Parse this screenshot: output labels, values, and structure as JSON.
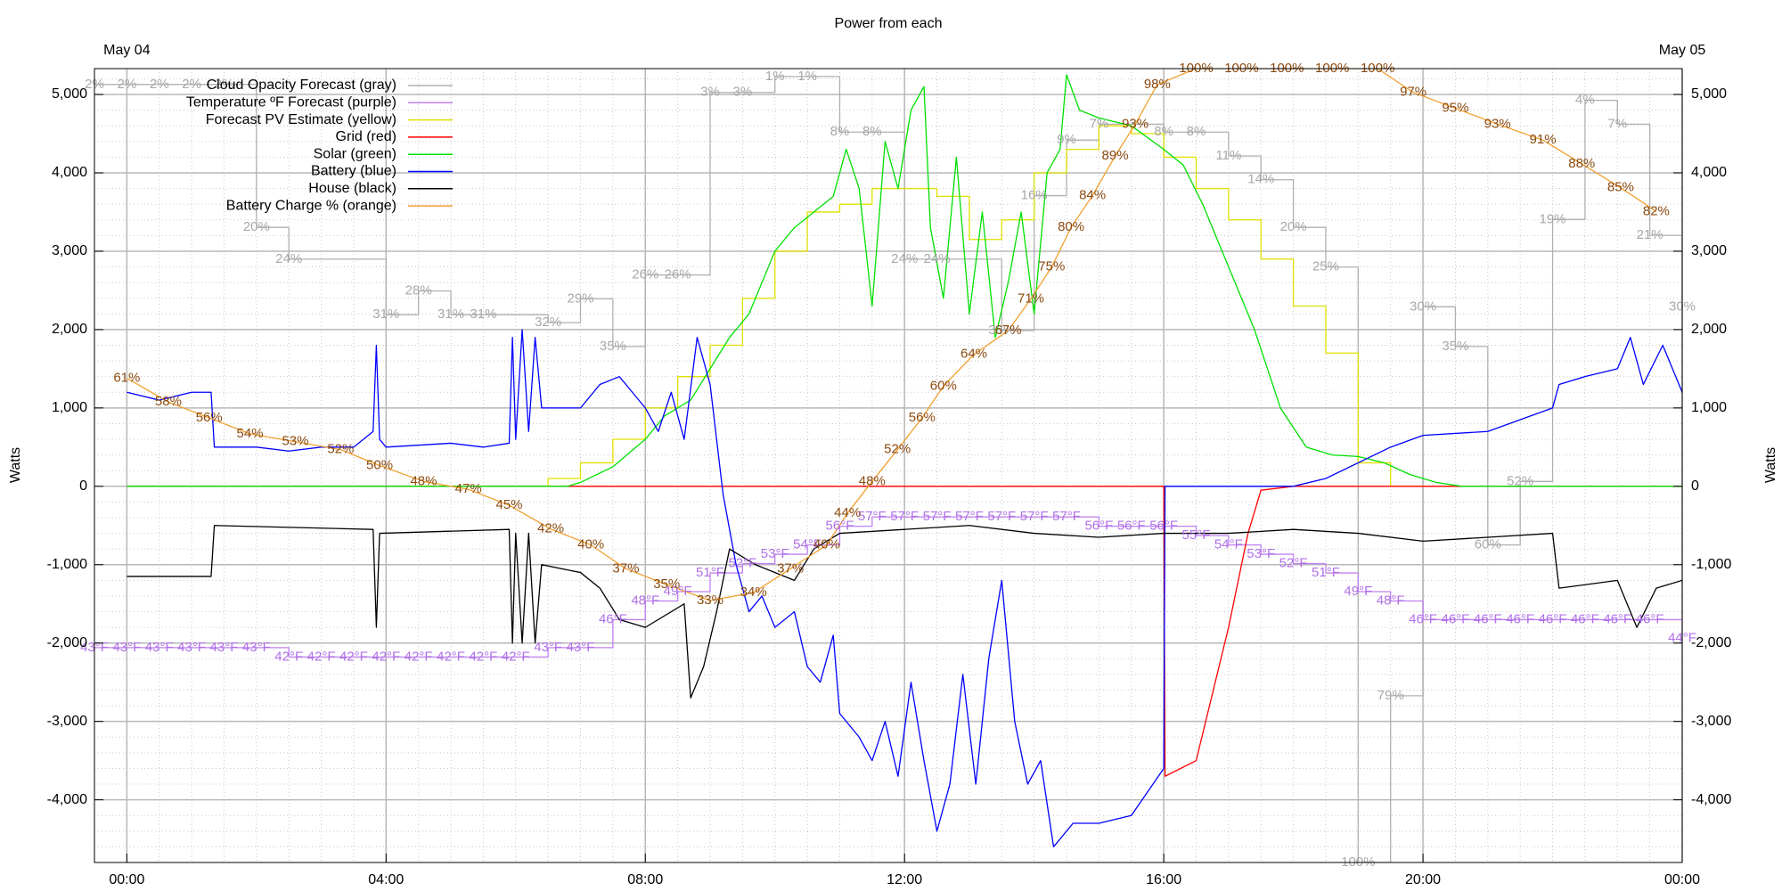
{
  "chart_data": {
    "type": "line",
    "title": "Power from each",
    "ylabel": "Watts",
    "y2label": "Watts",
    "xlim": [
      -0.5,
      24
    ],
    "xticks": [
      {
        "value": 0,
        "label": "00:00"
      },
      {
        "value": 4,
        "label": "04:00"
      },
      {
        "value": 8,
        "label": "08:00"
      },
      {
        "value": 12,
        "label": "12:00"
      },
      {
        "value": 16,
        "label": "16:00"
      },
      {
        "value": 20,
        "label": "20:00"
      },
      {
        "value": 24,
        "label": "00:00"
      }
    ],
    "x2ticks": [
      {
        "value": 0,
        "label": "May 04"
      },
      {
        "value": 24,
        "label": "May 05"
      }
    ],
    "ylim": [
      -4800,
      5330
    ],
    "yticks": [
      {
        "value": -4000,
        "label": "-4,000"
      },
      {
        "value": -3000,
        "label": "-3,000"
      },
      {
        "value": -2000,
        "label": "-2,000"
      },
      {
        "value": -1000,
        "label": "-1,000"
      },
      0,
      {
        "value": 1000,
        "label": "1,000"
      },
      {
        "value": 2000,
        "label": "2,000"
      },
      {
        "value": 3000,
        "label": "3,000"
      },
      {
        "value": 4000,
        "label": "4,000"
      },
      {
        "value": 5000,
        "label": "5,000"
      }
    ],
    "grid": true,
    "minor_grid": {
      "x": 0.5,
      "y": 200
    },
    "legend": "top-left",
    "series": [
      {
        "name": "Cloud Opacity Forecast (gray)",
        "color": "#b0b0b0",
        "label_color": "#a8a8a8",
        "step": true,
        "ylim": [
          100,
          0
        ],
        "x": [
          -0.5,
          0,
          0.5,
          1.0,
          1.5,
          2.0,
          2.5,
          4.0,
          4.5,
          5.0,
          5.5,
          6.5,
          7.0,
          7.5,
          8.0,
          8.5,
          9.0,
          9.5,
          10.0,
          10.5,
          11.0,
          11.5,
          12.0,
          12.5,
          13.5,
          14.0,
          14.5,
          15.0,
          16.0,
          16.5,
          17.0,
          17.5,
          18.0,
          18.5,
          19.0,
          19.5,
          20.0,
          20.5,
          21.0,
          21.5,
          22.0,
          22.5,
          23.0,
          23.5,
          24.0
        ],
        "values": [
          2,
          2,
          2,
          2,
          2,
          20,
          24,
          31,
          28,
          31,
          31,
          32,
          29,
          35,
          26,
          26,
          3,
          3,
          1,
          1,
          8,
          8,
          24,
          24,
          33,
          16,
          9,
          7,
          8,
          8,
          11,
          14,
          20,
          25,
          100,
          79,
          30,
          35,
          60,
          52,
          19,
          4,
          7,
          21,
          30
        ],
        "value_labels": [
          "2%",
          "2%",
          "2%",
          "2%",
          "2%",
          "20%",
          "24%",
          "31%",
          "28%",
          "31%",
          "31%",
          "32%",
          "29%",
          "35%",
          "26%",
          "26%",
          "3%",
          "3%",
          "1%",
          "1%",
          "8%",
          "8%",
          "24%",
          "24%",
          "33%",
          "16%",
          "9%",
          "7%",
          "8%",
          "8%",
          "11%",
          "14%",
          "20%",
          "25%",
          "100%",
          "79%",
          "30%",
          "35%",
          "60%",
          "52%",
          "19%",
          "4%",
          "7%",
          "21%",
          "30%"
        ]
      },
      {
        "name": "Temperature ºF Forecast (purple)",
        "color": "#c080f0",
        "label_color": "#b070e8",
        "step": true,
        "ylim": [
          20,
          105
        ],
        "x": [
          -0.5,
          0,
          0.5,
          1.0,
          1.5,
          2.0,
          2.5,
          3.0,
          3.5,
          4.0,
          4.5,
          5.0,
          5.5,
          6.0,
          6.5,
          7.0,
          7.5,
          8.0,
          8.5,
          9.0,
          9.5,
          10.0,
          10.5,
          11.0,
          11.5,
          12.0,
          12.5,
          13.0,
          13.5,
          14.0,
          14.5,
          15.0,
          15.5,
          16.0,
          16.5,
          17.0,
          17.5,
          18.0,
          18.5,
          19.0,
          19.5,
          20.0,
          20.5,
          21.0,
          21.5,
          22.0,
          22.5,
          23.0,
          23.5,
          24.0
        ],
        "values": [
          43,
          43,
          43,
          43,
          43,
          43,
          42,
          42,
          42,
          42,
          42,
          42,
          42,
          42,
          43,
          43,
          46,
          48,
          49,
          51,
          52,
          53,
          54,
          56,
          57,
          57,
          57,
          57,
          57,
          57,
          57,
          56,
          56,
          56,
          55,
          54,
          53,
          52,
          51,
          49,
          48,
          46,
          46,
          46,
          46,
          46,
          46,
          46,
          46,
          44
        ],
        "value_labels": [
          "43°F",
          "43°F",
          "43°F",
          "43°F",
          "43°F",
          "43°F",
          "42°F",
          "42°F",
          "42°F",
          "42°F",
          "42°F",
          "42°F",
          "42°F",
          "42°F",
          "43°F",
          "43°F",
          "46°F",
          "48°F",
          "49°F",
          "51°F",
          "52°F",
          "53°F",
          "54°F",
          "56°F",
          "57°F",
          "57°F",
          "57°F",
          "57°F",
          "57°F",
          "57°F",
          "57°F",
          "56°F",
          "56°F",
          "56°F",
          "55°F",
          "54°F",
          "53°F",
          "52°F",
          "51°F",
          "49°F",
          "48°F",
          "46°F",
          "46°F",
          "46°F",
          "46°F",
          "46°F",
          "46°F",
          "46°F",
          "46°F",
          "44°F"
        ]
      },
      {
        "name": "Forecast PV Estimate (yellow)",
        "color": "#e0e000",
        "step": true,
        "x": [
          0,
          6.5,
          7.0,
          7.5,
          8.0,
          8.5,
          9.0,
          9.5,
          10.0,
          10.5,
          11.0,
          11.5,
          12.0,
          12.5,
          13.0,
          13.5,
          14.0,
          14.5,
          15.0,
          15.5,
          16.0,
          16.5,
          17.0,
          17.5,
          18.0,
          18.5,
          19.0,
          19.5,
          20.5
        ],
        "values": [
          0,
          100,
          300,
          600,
          1000,
          1400,
          1800,
          2400,
          3000,
          3500,
          3600,
          3800,
          3800,
          3700,
          3150,
          3400,
          4000,
          4300,
          4600,
          4500,
          4200,
          3800,
          3400,
          2900,
          2300,
          1700,
          300,
          0,
          0
        ]
      },
      {
        "name": "Grid (red)",
        "color": "#ff0000",
        "x": [
          0,
          16,
          16.02,
          16.5,
          17,
          17.3,
          17.5,
          18,
          24
        ],
        "values": [
          0,
          0,
          -3700,
          -3500,
          -1800,
          -600,
          -50,
          0,
          0
        ]
      },
      {
        "name": "Solar (green)",
        "color": "#00e000",
        "x": [
          0,
          6.8,
          7.0,
          7.5,
          8.0,
          8.3,
          8.7,
          9.0,
          9.3,
          9.6,
          10.0,
          10.3,
          10.6,
          10.9,
          11.1,
          11.3,
          11.5,
          11.7,
          11.9,
          12.1,
          12.3,
          12.4,
          12.6,
          12.8,
          13.0,
          13.2,
          13.4,
          13.6,
          13.8,
          14.0,
          14.2,
          14.4,
          14.5,
          14.7,
          15.0,
          15.5,
          16.0,
          16.3,
          16.6,
          17.0,
          17.4,
          17.8,
          18.2,
          18.6,
          19.0,
          19.4,
          19.8,
          20.2,
          20.6,
          24
        ],
        "values": [
          0,
          0,
          50,
          250,
          600,
          900,
          1100,
          1500,
          1900,
          2200,
          3000,
          3300,
          3500,
          3700,
          4300,
          3800,
          2300,
          4400,
          3800,
          4800,
          5100,
          3300,
          2400,
          4200,
          2200,
          3500,
          1900,
          2600,
          3500,
          2200,
          4000,
          4300,
          5250,
          4800,
          4700,
          4600,
          4300,
          4100,
          3600,
          2800,
          2000,
          1000,
          500,
          400,
          380,
          300,
          150,
          50,
          0,
          0
        ]
      },
      {
        "name": "Battery (blue)",
        "color": "#0000ff",
        "x": [
          0,
          0.5,
          1.0,
          1.3,
          1.35,
          2,
          2.5,
          3,
          3.5,
          3.8,
          3.85,
          3.9,
          4,
          5,
          5.5,
          5.9,
          5.95,
          6.0,
          6.1,
          6.2,
          6.3,
          6.4,
          7,
          7.3,
          7.6,
          7.8,
          8.0,
          8.2,
          8.4,
          8.6,
          8.8,
          9.0,
          9.2,
          9.4,
          9.6,
          9.8,
          10.0,
          10.3,
          10.5,
          10.7,
          10.9,
          11.0,
          11.3,
          11.5,
          11.7,
          11.9,
          12.1,
          12.3,
          12.5,
          12.7,
          12.9,
          13.1,
          13.3,
          13.5,
          13.7,
          13.9,
          14.1,
          14.3,
          14.6,
          15,
          15.5,
          16,
          16.02,
          17,
          18,
          18.5,
          19,
          19.5,
          20,
          21,
          22,
          22.1,
          22.5,
          23,
          23.2,
          23.4,
          23.7,
          24
        ],
        "values": [
          1200,
          1100,
          1200,
          1200,
          500,
          500,
          450,
          500,
          500,
          700,
          1800,
          600,
          500,
          550,
          500,
          550,
          1900,
          600,
          2000,
          700,
          1900,
          1000,
          1000,
          1300,
          1400,
          1200,
          1000,
          700,
          1200,
          600,
          1900,
          1300,
          -100,
          -1000,
          -1600,
          -1400,
          -1800,
          -1600,
          -2300,
          -2500,
          -1900,
          -2900,
          -3200,
          -3500,
          -3000,
          -3700,
          -2500,
          -3500,
          -4400,
          -3800,
          -2400,
          -3800,
          -2200,
          -1200,
          -3000,
          -3800,
          -3500,
          -4600,
          -4300,
          -4300,
          -4200,
          -3600,
          0,
          0,
          0,
          100,
          300,
          500,
          650,
          700,
          1000,
          1300,
          1400,
          1500,
          1900,
          1300,
          1800,
          1200
        ]
      },
      {
        "name": "House (black)",
        "color": "#000000",
        "x": [
          0,
          1.3,
          1.35,
          3.8,
          3.85,
          3.9,
          5.9,
          5.95,
          6.0,
          6.1,
          6.2,
          6.3,
          6.4,
          7,
          7.3,
          7.6,
          8.0,
          8.6,
          8.7,
          8.9,
          9.1,
          9.3,
          9.7,
          10.3,
          10.6,
          11,
          12,
          13,
          14,
          15,
          16,
          17,
          18,
          19,
          20,
          21,
          22,
          22.1,
          23,
          23.3,
          23.6,
          24
        ],
        "values": [
          -1150,
          -1150,
          -500,
          -550,
          -1800,
          -600,
          -550,
          -2000,
          -600,
          -2000,
          -600,
          -2000,
          -1000,
          -1100,
          -1300,
          -1700,
          -1800,
          -1500,
          -2700,
          -2300,
          -1600,
          -800,
          -1000,
          -1200,
          -800,
          -600,
          -550,
          -500,
          -600,
          -650,
          -600,
          -600,
          -550,
          -600,
          -700,
          -650,
          -600,
          -1300,
          -1200,
          -1800,
          -1300,
          -1200
        ]
      },
      {
        "name": "Battery Charge % (orange)",
        "color": "#f0a030",
        "label_color": "#8b4a10",
        "ylim": [
          0,
          100
        ],
        "x": [
          0,
          0.64,
          1.27,
          1.9,
          2.6,
          3.3,
          3.9,
          4.58,
          5.27,
          5.9,
          6.54,
          7.16,
          7.7,
          8.33,
          9.0,
          9.67,
          10.24,
          10.8,
          11.12,
          11.5,
          11.89,
          12.27,
          12.6,
          13.07,
          13.6,
          13.95,
          14.27,
          14.57,
          14.9,
          15.25,
          15.56,
          15.9,
          16.5,
          17.2,
          17.9,
          18.6,
          19.3,
          19.85,
          20.5,
          21.15,
          21.85,
          22.45,
          23.05,
          23.6
        ],
        "values": [
          61,
          58,
          56,
          54,
          53,
          52,
          50,
          48,
          47,
          45,
          42,
          40,
          37,
          35,
          33,
          34,
          37,
          40,
          44,
          48,
          52,
          56,
          60,
          64,
          67,
          71,
          75,
          80,
          84,
          89,
          93,
          98,
          100,
          100,
          100,
          100,
          100,
          97,
          95,
          93,
          91,
          88,
          85,
          82
        ],
        "value_labels": [
          "61%",
          "58%",
          "56%",
          "54%",
          "53%",
          "52%",
          "50%",
          "48%",
          "47%",
          "45%",
          "42%",
          "40%",
          "37%",
          "35%",
          "33%",
          "34%",
          "37%",
          "40%",
          "44%",
          "48%",
          "52%",
          "56%",
          "60%",
          "64%",
          "67%",
          "71%",
          "75%",
          "80%",
          "84%",
          "89%",
          "93%",
          "98%",
          "100%",
          "100%",
          "100%",
          "100%",
          "100%",
          "97%",
          "95%",
          "93%",
          "91%",
          "88%",
          "85%",
          "82%"
        ]
      }
    ]
  }
}
